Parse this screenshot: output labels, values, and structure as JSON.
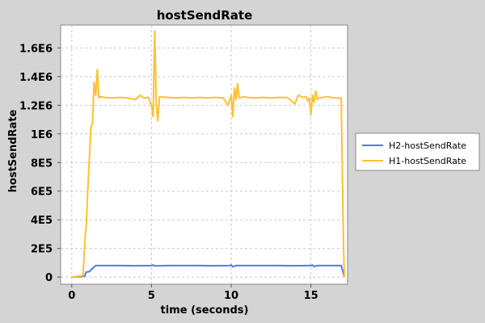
{
  "chart_data": {
    "type": "line",
    "title": "hostSendRate",
    "xlabel": "time (seconds)",
    "ylabel": "hostSendRate",
    "xlim": [
      -0.7,
      17.3
    ],
    "ylim": [
      -50000,
      1760000
    ],
    "x_ticks": [
      0,
      5,
      10,
      15
    ],
    "x_tick_labels": [
      "0",
      "5",
      "10",
      "15"
    ],
    "y_ticks": [
      0,
      200000,
      400000,
      600000,
      800000,
      1000000,
      1200000,
      1400000,
      1600000
    ],
    "y_tick_labels": [
      "0",
      "2E5",
      "4E5",
      "6E5",
      "8E5",
      "1E6",
      "1.2E6",
      "1.4E6",
      "1.6E6"
    ],
    "grid": true,
    "legend_position": "right",
    "series": [
      {
        "name": "H2-hostSendRate",
        "color": "#5577ee",
        "points": [
          [
            0.0,
            0
          ],
          [
            0.8,
            5000
          ],
          [
            0.9,
            35000
          ],
          [
            1.1,
            38000
          ],
          [
            1.3,
            60000
          ],
          [
            1.5,
            80000
          ],
          [
            2,
            80000
          ],
          [
            3,
            80000
          ],
          [
            4,
            79000
          ],
          [
            5,
            80000
          ],
          [
            5.1,
            85000
          ],
          [
            5.2,
            78000
          ],
          [
            6,
            80000
          ],
          [
            7,
            80000
          ],
          [
            8,
            80000
          ],
          [
            9,
            79000
          ],
          [
            9.9,
            80000
          ],
          [
            10.0,
            85000
          ],
          [
            10.1,
            72000
          ],
          [
            10.3,
            80000
          ],
          [
            11,
            80000
          ],
          [
            12,
            80000
          ],
          [
            13,
            80000
          ],
          [
            14,
            79000
          ],
          [
            15,
            80000
          ],
          [
            15.1,
            84000
          ],
          [
            15.2,
            74000
          ],
          [
            15.4,
            80000
          ],
          [
            16,
            80000
          ],
          [
            16.9,
            80000
          ],
          [
            17.0,
            40000
          ],
          [
            17.1,
            0
          ]
        ]
      },
      {
        "name": "H1-hostSendRate",
        "color": "#ffc034",
        "points": [
          [
            0.0,
            0
          ],
          [
            0.7,
            10000
          ],
          [
            0.85,
            300000
          ],
          [
            0.9,
            350000
          ],
          [
            1.0,
            600000
          ],
          [
            1.2,
            1050000
          ],
          [
            1.3,
            1070000
          ],
          [
            1.4,
            1360000
          ],
          [
            1.5,
            1270000
          ],
          [
            1.6,
            1450000
          ],
          [
            1.7,
            1250000
          ],
          [
            1.8,
            1260000
          ],
          [
            2.0,
            1255000
          ],
          [
            2.5,
            1250000
          ],
          [
            3.0,
            1255000
          ],
          [
            3.5,
            1250000
          ],
          [
            4.0,
            1240000
          ],
          [
            4.3,
            1270000
          ],
          [
            4.5,
            1250000
          ],
          [
            4.8,
            1255000
          ],
          [
            5.0,
            1200000
          ],
          [
            5.1,
            1120000
          ],
          [
            5.2,
            1720000
          ],
          [
            5.3,
            1210000
          ],
          [
            5.4,
            1090000
          ],
          [
            5.5,
            1260000
          ],
          [
            6,
            1255000
          ],
          [
            6.5,
            1250000
          ],
          [
            7,
            1255000
          ],
          [
            7.5,
            1250000
          ],
          [
            8,
            1255000
          ],
          [
            8.5,
            1250000
          ],
          [
            9,
            1255000
          ],
          [
            9.5,
            1250000
          ],
          [
            9.8,
            1200000
          ],
          [
            10.0,
            1270000
          ],
          [
            10.1,
            1120000
          ],
          [
            10.2,
            1320000
          ],
          [
            10.3,
            1240000
          ],
          [
            10.4,
            1350000
          ],
          [
            10.5,
            1250000
          ],
          [
            10.8,
            1260000
          ],
          [
            11,
            1255000
          ],
          [
            11.5,
            1250000
          ],
          [
            12,
            1255000
          ],
          [
            12.5,
            1250000
          ],
          [
            13,
            1255000
          ],
          [
            13.5,
            1255000
          ],
          [
            14,
            1210000
          ],
          [
            14.2,
            1270000
          ],
          [
            14.5,
            1255000
          ],
          [
            14.7,
            1260000
          ],
          [
            14.8,
            1230000
          ],
          [
            14.9,
            1250000
          ],
          [
            15.0,
            1130000
          ],
          [
            15.1,
            1270000
          ],
          [
            15.2,
            1220000
          ],
          [
            15.3,
            1300000
          ],
          [
            15.4,
            1240000
          ],
          [
            15.5,
            1250000
          ],
          [
            16,
            1260000
          ],
          [
            16.5,
            1250000
          ],
          [
            16.9,
            1250000
          ],
          [
            17.0,
            500000
          ],
          [
            17.05,
            200000
          ],
          [
            17.1,
            0
          ]
        ]
      }
    ]
  }
}
